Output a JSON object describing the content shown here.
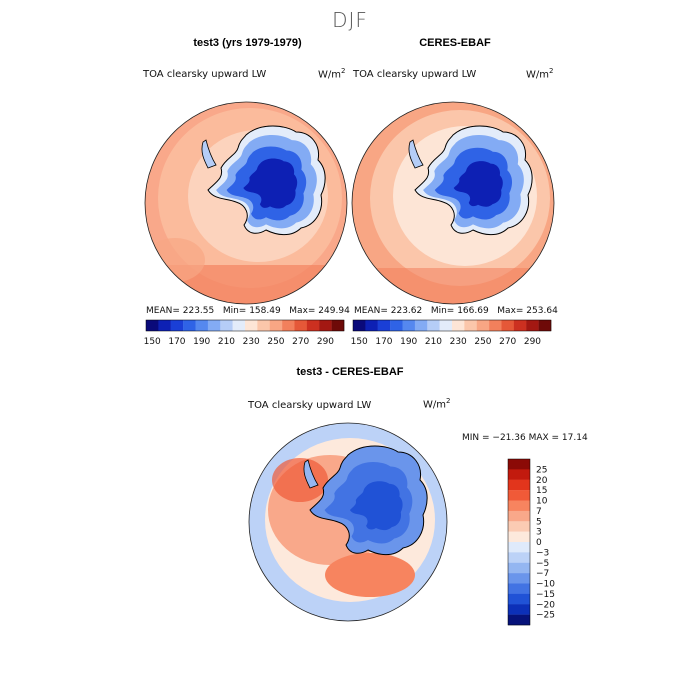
{
  "suptitle": "DJF",
  "panels": [
    {
      "title": "test3 (yrs 1979-1979)",
      "variable": "TOA clearsky upward LW",
      "units": "W/m",
      "units_exp": "2",
      "stats": {
        "mean": "MEAN= 223.55",
        "min": "Min= 158.49",
        "max": "Max= 249.94"
      }
    },
    {
      "title": "CERES-EBAF",
      "variable": "TOA clearsky upward LW",
      "units": "W/m",
      "units_exp": "2",
      "stats": {
        "mean": "MEAN= 223.62",
        "min": "Min= 166.69",
        "max": "Max= 253.64"
      }
    }
  ],
  "colorbar_top": {
    "labels": [
      "150",
      "170",
      "190",
      "210",
      "230",
      "250",
      "270",
      "290"
    ],
    "colors": [
      "#0a0a7a",
      "#0d20b4",
      "#1a3fd6",
      "#2f63e6",
      "#5588ef",
      "#83abf4",
      "#b5cdf7",
      "#e3ecfa",
      "#fde5d6",
      "#fbc6aa",
      "#f8a684",
      "#f2805c",
      "#e55838",
      "#cc3020",
      "#a31812",
      "#6e0a08"
    ]
  },
  "diff": {
    "title": "test3 - CERES-EBAF",
    "variable": "TOA clearsky upward LW",
    "units": "W/m",
    "units_exp": "2",
    "minmax": "MIN = −21.36  MAX =  17.14"
  },
  "colorbar_diff": {
    "labels": [
      "25",
      "20",
      "15",
      "10",
      "7",
      "5",
      "3",
      "0",
      "−3",
      "−5",
      "−7",
      "−10",
      "−15",
      "−20",
      "−25"
    ],
    "colors": [
      "#8b0a06",
      "#c21a0e",
      "#e2351c",
      "#f05a38",
      "#f7845f",
      "#f9a88a",
      "#fbcbb3",
      "#fde9dc",
      "#dfeafb",
      "#bcd2f7",
      "#94b6f1",
      "#6a95eb",
      "#4273e3",
      "#2052d6",
      "#0c30b8",
      "#06127a"
    ]
  },
  "map": {
    "region": "Antarctica / Southern Ocean",
    "projection": "south polar stereographic"
  }
}
